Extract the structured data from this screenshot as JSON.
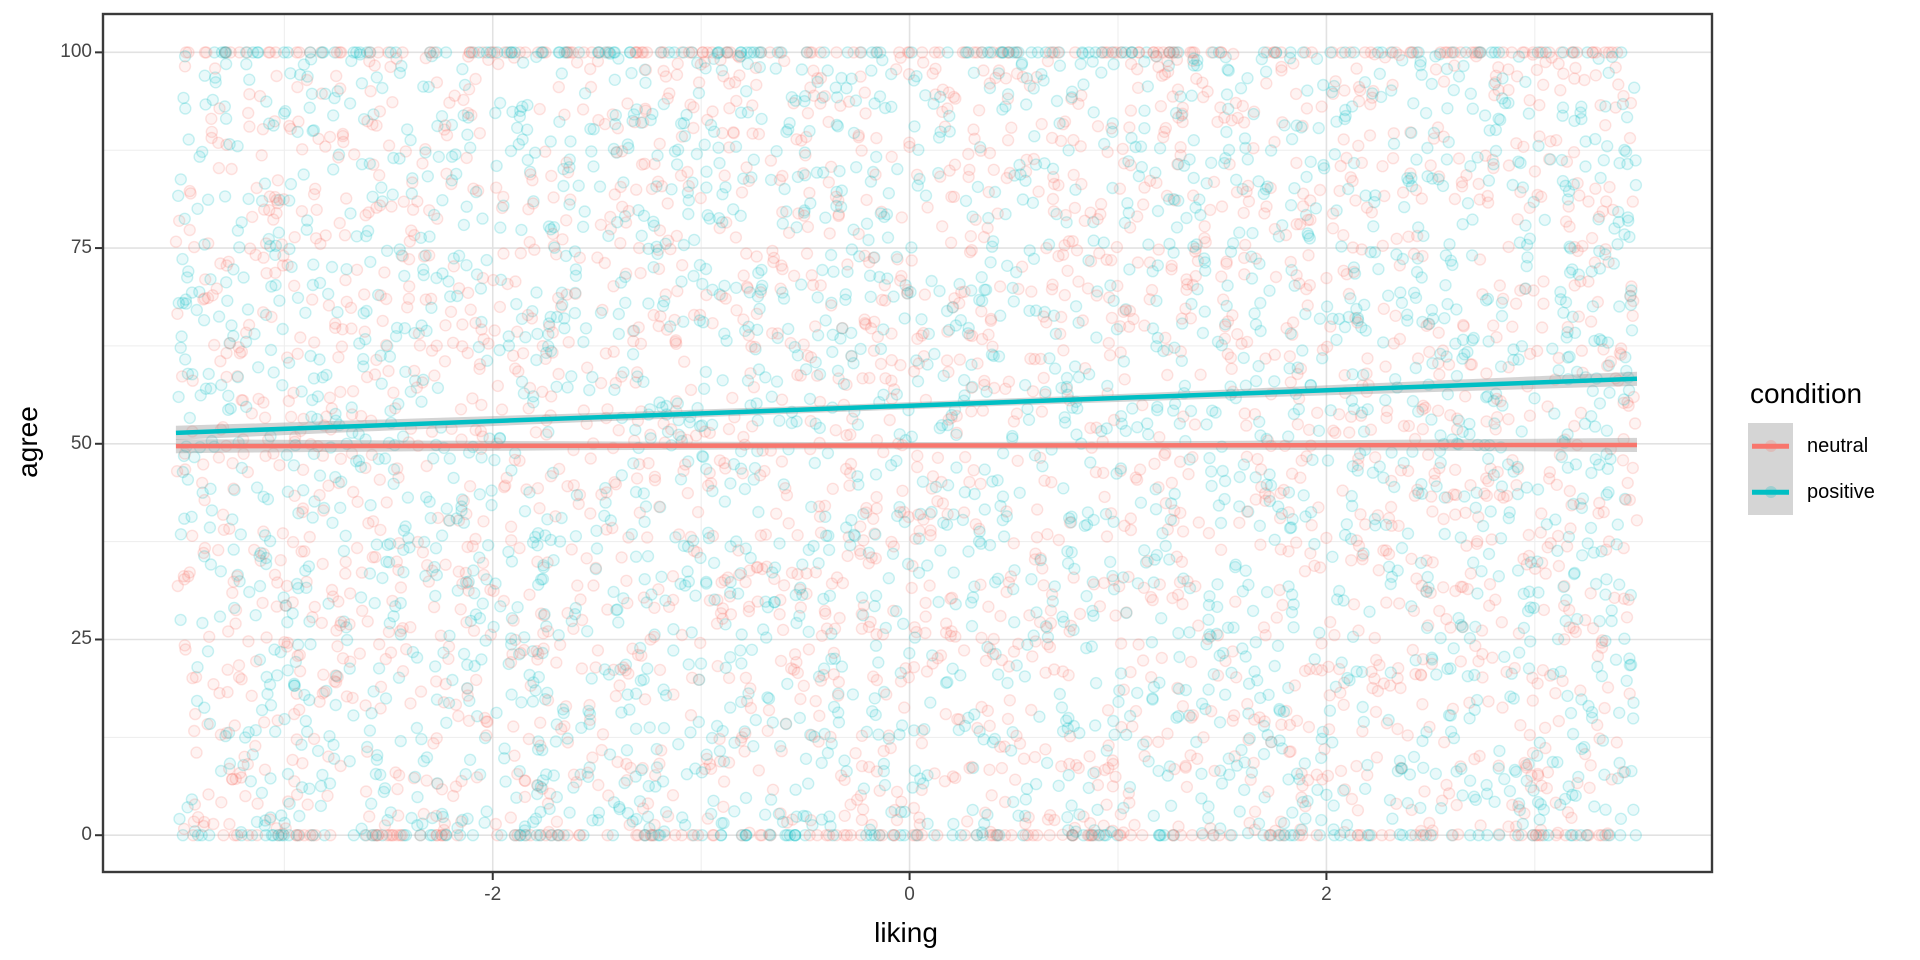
{
  "figure": {
    "background": "#FFFFFF",
    "panel_border_color": "#3A3A3A",
    "grid_major_color": "#E2E2E2",
    "grid_minor_color": "#EDEDED",
    "tick_mark_color": "#333333",
    "tick_label_color": "#454545",
    "legend_key_background": "#D5D5D5"
  },
  "chart_data": {
    "type": "scatter",
    "title": "",
    "xlabel": "liking",
    "ylabel": "agree",
    "legend_title": "condition",
    "legend_position": "right",
    "grid": true,
    "xlim": [
      -3.87,
      3.85
    ],
    "ylim": [
      -4.7,
      104.9
    ],
    "x_ticks": [
      -2,
      0,
      2
    ],
    "x_minor_ticks": [
      -3,
      -1,
      1,
      3
    ],
    "y_ticks": [
      0,
      25,
      50,
      75,
      100
    ],
    "y_minor_ticks": [
      12.5,
      37.5,
      62.5,
      87.5
    ],
    "x_data_range": [
      -3.52,
      3.49
    ],
    "y_clip_range": [
      0,
      100
    ],
    "series": [
      {
        "name": "neutral",
        "color": "#F8766D",
        "n_points": 2700,
        "trend_line": {
          "x": [
            -3.52,
            3.49
          ],
          "y": [
            49.7,
            49.85
          ]
        }
      },
      {
        "name": "positive",
        "color": "#00BFC4",
        "n_points": 2700,
        "trend_line": {
          "x": [
            -3.52,
            3.49
          ],
          "y": [
            51.4,
            58.3
          ]
        }
      }
    ],
    "ci_band": {
      "color": "#999999",
      "opacity": 0.42,
      "half_width_mid": 0.45,
      "half_width_edge": 0.9
    },
    "trend_line_width": 4.5,
    "scatter_style": {
      "radius": 5.5,
      "fill_opacity": 0.085,
      "stroke_opacity": 0.2,
      "stroke_width": 1.4,
      "seed": 1234,
      "y_overshoot": 6
    }
  }
}
